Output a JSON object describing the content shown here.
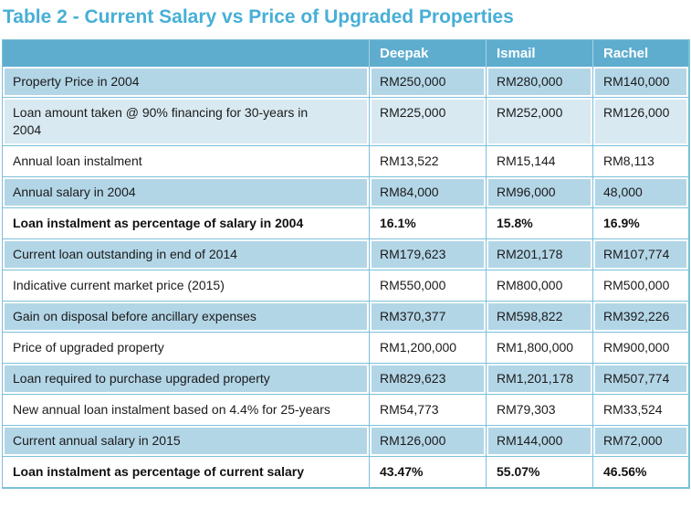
{
  "title": "Table 2 - Current Salary vs Price of Upgraded Properties",
  "colors": {
    "title_text": "#47afd6",
    "header_bg": "#5eadcf",
    "header_text": "#ffffff",
    "row_blue": "#b3d6e7",
    "row_light_blue": "#d8e9f1",
    "row_white": "#ffffff",
    "grid_border": "#7cc0db",
    "body_text": "#1b1b1b"
  },
  "chart_data": {
    "type": "table",
    "title": "Table 2 - Current Salary vs Price of Upgraded Properties",
    "columns": [
      "",
      "Deepak",
      "Ismail",
      "Rachel"
    ],
    "rows": [
      {
        "label": "Property Price in 2004",
        "values": [
          "RM250,000",
          "RM280,000",
          "RM140,000"
        ],
        "bold": false,
        "bg": "blue"
      },
      {
        "label": "Loan amount taken @ 90% financing for 30-years in 2004",
        "values": [
          "RM225,000",
          "RM252,000",
          "RM126,000"
        ],
        "bold": false,
        "bg": "lightblue"
      },
      {
        "label": "Annual loan instalment",
        "values": [
          "RM13,522",
          "RM15,144",
          "RM8,113"
        ],
        "bold": false,
        "bg": "white"
      },
      {
        "label": "Annual salary in 2004",
        "values": [
          "RM84,000",
          "RM96,000",
          "48,000"
        ],
        "bold": false,
        "bg": "blue"
      },
      {
        "label": "Loan instalment as percentage of salary in 2004",
        "values": [
          "16.1%",
          "15.8%",
          "16.9%"
        ],
        "bold": true,
        "bg": "white"
      },
      {
        "label": "Current loan outstanding in end of 2014",
        "values": [
          "RM179,623",
          "RM201,178",
          "RM107,774"
        ],
        "bold": false,
        "bg": "blue"
      },
      {
        "label": "Indicative current market price (2015)",
        "values": [
          "RM550,000",
          "RM800,000",
          "RM500,000"
        ],
        "bold": false,
        "bg": "white"
      },
      {
        "label": "Gain on disposal before ancillary expenses",
        "values": [
          "RM370,377",
          "RM598,822",
          "RM392,226"
        ],
        "bold": false,
        "bg": "blue"
      },
      {
        "label": "Price of upgraded property",
        "values": [
          "RM1,200,000",
          "RM1,800,000",
          "RM900,000"
        ],
        "bold": false,
        "bg": "white"
      },
      {
        "label": "Loan required to purchase upgraded property",
        "values": [
          "RM829,623",
          "RM1,201,178",
          "RM507,774"
        ],
        "bold": false,
        "bg": "blue"
      },
      {
        "label": "New annual loan instalment based on 4.4% for 25-years",
        "values": [
          "RM54,773",
          "RM79,303",
          "RM33,524"
        ],
        "bold": false,
        "bg": "white"
      },
      {
        "label": "Current annual salary in 2015",
        "values": [
          "RM126,000",
          "RM144,000",
          "RM72,000"
        ],
        "bold": false,
        "bg": "blue"
      },
      {
        "label": "Loan instalment as percentage of current salary",
        "values": [
          "43.47%",
          "55.07%",
          "46.56%"
        ],
        "bold": true,
        "bg": "white"
      }
    ]
  }
}
